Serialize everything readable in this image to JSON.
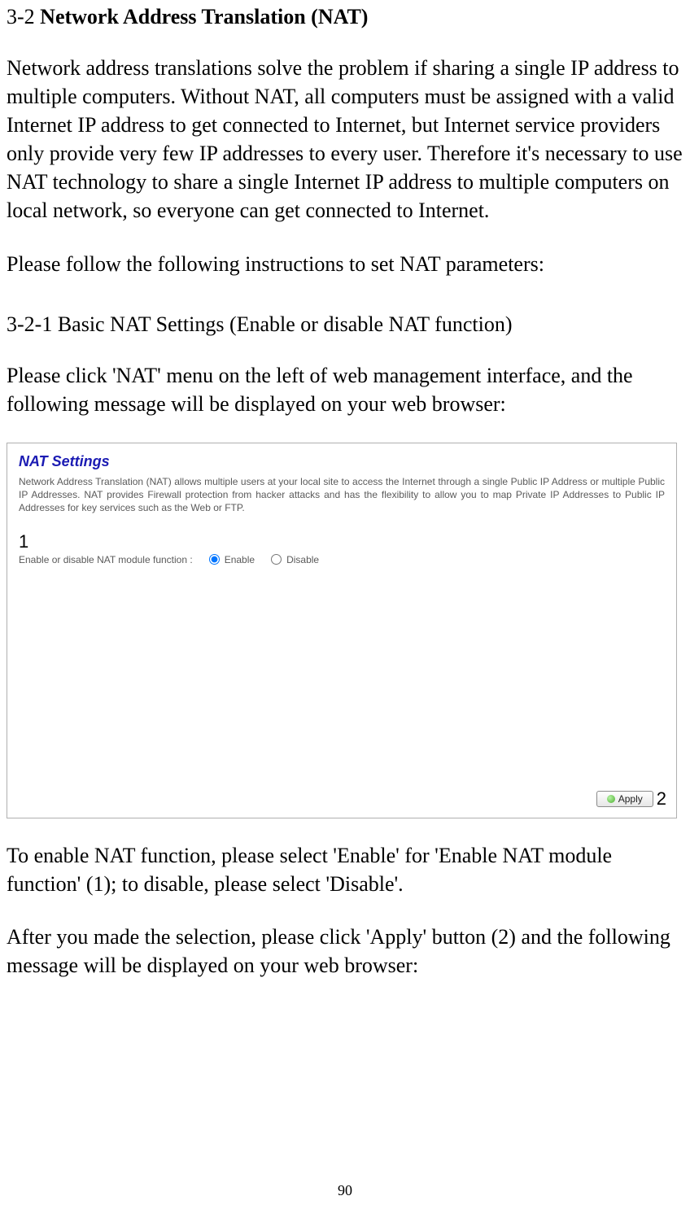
{
  "section": {
    "number": "3-2 ",
    "title": "Network Address Translation (NAT)"
  },
  "paragraph1": "Network address translations solve the problem if sharing a single IP address to multiple computers. Without NAT, all computers must be assigned with a valid Internet IP address to get connected to Internet, but Internet service providers only provide very few IP addresses to every user. Therefore it's necessary to use NAT technology to share a single Internet IP address to multiple computers on local network, so everyone can get connected to Internet.",
  "paragraph2": "Please follow the following instructions to set NAT parameters:",
  "subsection": "3-2-1 Basic NAT Settings (Enable or disable NAT function)",
  "paragraph3": "Please click 'NAT' menu on the left of web management interface, and the following message will be displayed on your web browser:",
  "screenshot": {
    "heading": "NAT Settings",
    "description": "Network Address Translation (NAT) allows multiple users at your local site to access the Internet through a single Public IP Address or multiple Public IP Addresses. NAT provides Firewall protection from hacker attacks and has the flexibility to allow you to map Private IP Addresses to Public IP Addresses for key services such as the Web or FTP.",
    "callout1": "1",
    "toggle_label": "Enable or disable NAT module function :",
    "option_enable": "Enable",
    "option_disable": "Disable",
    "apply_label": "Apply",
    "callout2": "2"
  },
  "paragraph4": "To enable NAT function, please select 'Enable' for 'Enable NAT module function' (1); to disable, please select 'Disable'.",
  "paragraph5": "After you made the selection, please click 'Apply' button (2) and the following message will be displayed on your web browser:",
  "page_number": "90"
}
